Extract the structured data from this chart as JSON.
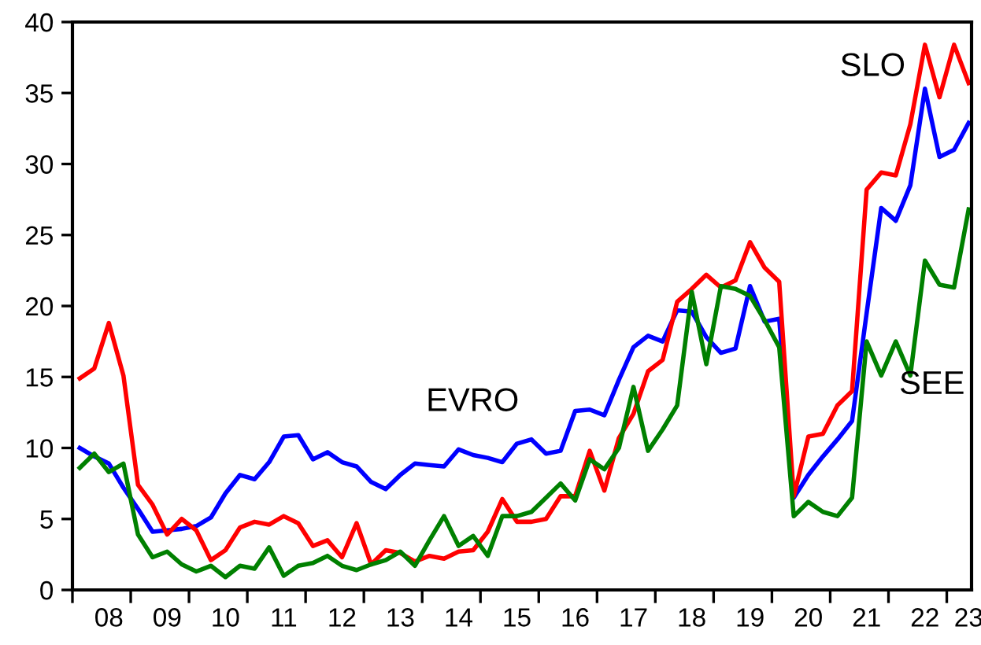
{
  "chart_data": {
    "type": "line",
    "categories": [
      null,
      null,
      "08",
      null,
      null,
      null,
      "09",
      null,
      null,
      null,
      "10",
      null,
      null,
      null,
      "11",
      null,
      null,
      null,
      "12",
      null,
      null,
      null,
      "13",
      null,
      null,
      null,
      "14",
      null,
      null,
      null,
      "15",
      null,
      null,
      null,
      "16",
      null,
      null,
      null,
      "17",
      null,
      null,
      null,
      "18",
      null,
      null,
      null,
      "19",
      null,
      null,
      null,
      "20",
      null,
      null,
      null,
      "21",
      null,
      null,
      null,
      "22",
      null,
      null,
      "23"
    ],
    "series": [
      {
        "name": "EVRO",
        "color": "#0000ff",
        "values": [
          10.0,
          9.4,
          8.9,
          7.2,
          5.7,
          4.1,
          4.2,
          4.3,
          4.5,
          5.1,
          6.8,
          8.1,
          7.8,
          9.0,
          10.8,
          10.9,
          9.2,
          9.7,
          9.0,
          8.7,
          7.6,
          7.1,
          8.1,
          8.9,
          8.8,
          8.7,
          9.9,
          9.5,
          9.3,
          9.0,
          10.3,
          10.6,
          9.6,
          9.8,
          12.6,
          12.7,
          12.3,
          14.8,
          17.1,
          17.9,
          17.5,
          19.7,
          19.6,
          17.8,
          16.7,
          17.0,
          21.4,
          18.9,
          19.1,
          6.5,
          8.1,
          9.4,
          10.6,
          11.9,
          19.5,
          26.9,
          26.0,
          28.5,
          35.3,
          30.5,
          31.0,
          32.9
        ]
      },
      {
        "name": "SLO",
        "color": "#ff0000",
        "values": [
          14.9,
          15.6,
          18.8,
          15.1,
          7.4,
          6.0,
          3.9,
          5.0,
          4.2,
          2.1,
          2.8,
          4.4,
          4.8,
          4.6,
          5.2,
          4.7,
          3.1,
          3.5,
          2.3,
          4.7,
          1.8,
          2.8,
          2.6,
          2.0,
          2.4,
          2.2,
          2.7,
          2.8,
          4.1,
          6.4,
          4.8,
          4.8,
          5.0,
          6.6,
          6.6,
          9.8,
          7.0,
          10.7,
          12.4,
          15.4,
          16.2,
          20.3,
          21.2,
          22.2,
          21.3,
          21.8,
          24.5,
          22.7,
          21.7,
          6.6,
          10.8,
          11.0,
          13.0,
          14.0,
          28.2,
          29.4,
          29.2,
          32.8,
          38.4,
          34.7,
          38.4,
          35.7
        ]
      },
      {
        "name": "SEE",
        "color": "#008000",
        "values": [
          8.6,
          9.6,
          8.3,
          8.9,
          3.9,
          2.3,
          2.7,
          1.8,
          1.3,
          1.7,
          0.9,
          1.7,
          1.5,
          3.0,
          1.0,
          1.7,
          1.9,
          2.4,
          1.7,
          1.4,
          1.8,
          2.1,
          2.7,
          1.7,
          3.5,
          5.2,
          3.1,
          3.8,
          2.4,
          5.2,
          5.2,
          5.5,
          6.5,
          7.5,
          6.3,
          9.2,
          8.5,
          10.0,
          14.3,
          9.8,
          11.3,
          13.0,
          21.0,
          15.9,
          21.4,
          21.2,
          20.7,
          19.0,
          17.1,
          5.2,
          6.2,
          5.5,
          5.2,
          6.5,
          17.5,
          15.1,
          17.5,
          15.1,
          23.2,
          21.5,
          21.3,
          26.8
        ]
      }
    ],
    "ylim": [
      0,
      40
    ],
    "yticks": [
      0,
      5,
      10,
      15,
      20,
      25,
      30,
      35,
      40
    ],
    "grid": false,
    "legend": false,
    "marker": "none",
    "line_style": "solid"
  }
}
